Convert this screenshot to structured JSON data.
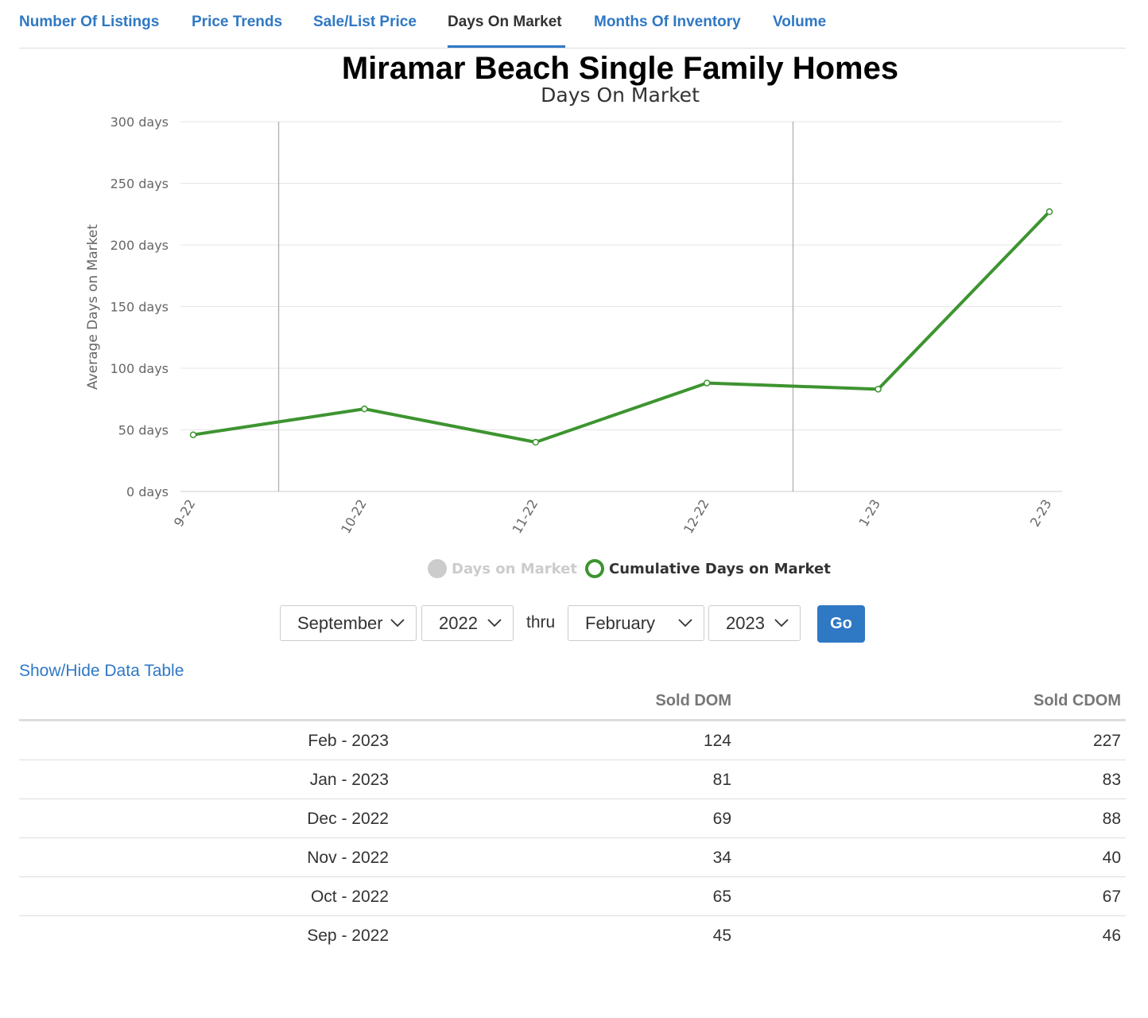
{
  "tabs": [
    {
      "label": "Number Of Listings",
      "active": false
    },
    {
      "label": "Price Trends",
      "active": false
    },
    {
      "label": "Sale/List Price",
      "active": false
    },
    {
      "label": "Days On Market",
      "active": true
    },
    {
      "label": "Months Of Inventory",
      "active": false
    },
    {
      "label": "Volume",
      "active": false
    }
  ],
  "chart_data": {
    "type": "line",
    "title": "Miramar Beach Single Family Homes",
    "subtitle": "Days On Market",
    "ylabel": "Average Days on Market",
    "xlabel": "",
    "categories": [
      "9-22",
      "10-22",
      "11-22",
      "12-22",
      "1-23",
      "2-23"
    ],
    "y_ticks": [
      "0 days",
      "50 days",
      "100 days",
      "150 days",
      "200 days",
      "250 days",
      "300 days"
    ],
    "ylim": [
      0,
      300
    ],
    "grid": true,
    "legend_position": "bottom-center",
    "series": [
      {
        "name": "Days on Market",
        "values": [
          45,
          65,
          34,
          69,
          81,
          124
        ],
        "visible": false,
        "color": "#cccccc"
      },
      {
        "name": "Cumulative Days on Market",
        "values": [
          46,
          67,
          40,
          88,
          83,
          227
        ],
        "visible": true,
        "color": "#3d9430"
      }
    ]
  },
  "controls": {
    "start_month": "September",
    "start_year": "2022",
    "thru_label": "thru",
    "end_month": "February",
    "end_year": "2023",
    "go_label": "Go"
  },
  "table_toggle_label": "Show/Hide Data Table",
  "table": {
    "headers": [
      "",
      "Sold DOM",
      "Sold CDOM"
    ],
    "rows": [
      {
        "month": "Feb - 2023",
        "dom": "124",
        "cdom": "227"
      },
      {
        "month": "Jan - 2023",
        "dom": "81",
        "cdom": "83"
      },
      {
        "month": "Dec - 2022",
        "dom": "69",
        "cdom": "88"
      },
      {
        "month": "Nov - 2022",
        "dom": "34",
        "cdom": "40"
      },
      {
        "month": "Oct - 2022",
        "dom": "65",
        "cdom": "67"
      },
      {
        "month": "Sep - 2022",
        "dom": "45",
        "cdom": "46"
      }
    ]
  },
  "colors": {
    "link_blue": "#2f78c4",
    "series_green": "#3d9430",
    "hidden_gray": "#cccccc"
  }
}
